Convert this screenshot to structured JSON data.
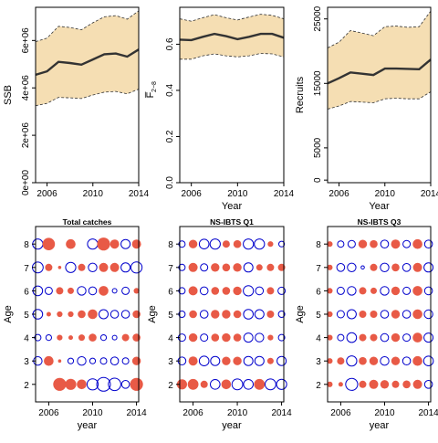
{
  "chart_data": [
    {
      "type": "line",
      "panel": "ssb",
      "xlabel": "",
      "ylabel": "SSB",
      "xlim": [
        2005,
        2014
      ],
      "ylim": [
        0,
        7400000
      ],
      "xticks": [
        2006,
        2010,
        2014
      ],
      "xtick_labels": [
        "2006",
        "2010",
        "2014"
      ],
      "yticks": [
        0,
        2000000,
        4000000,
        6000000
      ],
      "ytick_labels": [
        "0e+00",
        "2e+06",
        "4e+06",
        "6e+06"
      ],
      "x": [
        2005,
        2006,
        2007,
        2008,
        2009,
        2010,
        2011,
        2012,
        2013,
        2014
      ],
      "estimate": [
        4550000,
        4700000,
        5100000,
        5050000,
        4980000,
        5200000,
        5420000,
        5450000,
        5320000,
        5620000
      ],
      "upper": [
        5950000,
        6100000,
        6600000,
        6550000,
        6450000,
        6750000,
        7000000,
        7050000,
        6900000,
        7250000
      ],
      "lower": [
        3250000,
        3350000,
        3600000,
        3580000,
        3550000,
        3700000,
        3820000,
        3850000,
        3750000,
        3950000
      ],
      "band_color": "#f5deb3",
      "line_color": "#333333"
    },
    {
      "type": "line",
      "panel": "fbar",
      "xlabel": "Year",
      "ylabel": "F̅ 2–8",
      "ylabel_main": "F̅",
      "ylabel_sub": "2−8",
      "xlim": [
        2005,
        2014
      ],
      "ylim": [
        0,
        0.76
      ],
      "xticks": [
        2006,
        2010,
        2014
      ],
      "xtick_labels": [
        "2006",
        "2010",
        "2014"
      ],
      "yticks": [
        0,
        0.2,
        0.4,
        0.6
      ],
      "ytick_labels": [
        "0.0",
        "0.2",
        "0.4",
        "0.6"
      ],
      "x": [
        2005,
        2006,
        2007,
        2008,
        2009,
        2010,
        2011,
        2012,
        2013,
        2014
      ],
      "estimate": [
        0.62,
        0.618,
        0.632,
        0.645,
        0.635,
        0.622,
        0.632,
        0.645,
        0.645,
        0.628
      ],
      "upper": [
        0.71,
        0.7,
        0.715,
        0.728,
        0.715,
        0.705,
        0.718,
        0.73,
        0.725,
        0.71
      ],
      "lower": [
        0.535,
        0.535,
        0.55,
        0.558,
        0.55,
        0.545,
        0.55,
        0.56,
        0.558,
        0.545
      ],
      "band_color": "#f5deb3",
      "line_color": "#333333"
    },
    {
      "type": "line",
      "panel": "recruits",
      "xlabel": "Year",
      "ylabel": "Recruits",
      "xlim": [
        2005,
        2014
      ],
      "ylim": [
        -400,
        26800
      ],
      "xticks": [
        2006,
        2010,
        2014
      ],
      "xtick_labels": [
        "2006",
        "2010",
        "2014"
      ],
      "yticks": [
        0,
        5000,
        15000,
        25000
      ],
      "ytick_labels": [
        "0",
        "5000",
        "15000",
        "25000"
      ],
      "x": [
        2005,
        2006,
        2007,
        2008,
        2009,
        2010,
        2011,
        2012,
        2013,
        2014
      ],
      "estimate": [
        15000,
        15800,
        16700,
        16500,
        16300,
        17300,
        17300,
        17250,
        17200,
        18700
      ],
      "upper": [
        20500,
        21400,
        23200,
        22800,
        22400,
        23800,
        23900,
        23700,
        23800,
        26200
      ],
      "lower": [
        11000,
        11500,
        12200,
        12100,
        12000,
        12600,
        12700,
        12600,
        12600,
        13700
      ],
      "band_color": "#f5deb3",
      "line_color": "#333333"
    },
    {
      "type": "scatter",
      "panel": "total-catches",
      "title": "Total catches",
      "xlabel": "year",
      "ylabel": "Age",
      "xlim": [
        2004.8,
        2014.2
      ],
      "ylim": [
        1.25,
        8.75
      ],
      "xticks": [
        2006,
        2010,
        2014
      ],
      "xtick_labels": [
        "2006",
        "2010",
        "2014"
      ],
      "yticks": [
        2,
        3,
        4,
        5,
        6,
        7,
        8
      ],
      "years": [
        2005,
        2006,
        2007,
        2008,
        2009,
        2010,
        2011,
        2012,
        2013,
        2014
      ],
      "ages": [
        2,
        3,
        4,
        5,
        6,
        7,
        8
      ],
      "positive_color": "#e85a46",
      "negative_color": "#0000cc",
      "residuals": [
        [
          0,
          0,
          1.6,
          1.2,
          0.9,
          -1.2,
          -1.8,
          -1.5,
          -0.6,
          1.6
        ],
        [
          -0.7,
          0.9,
          0.1,
          -0.3,
          -0.7,
          -0.3,
          -0.4,
          -0.6,
          -0.4,
          0.7
        ],
        [
          -0.4,
          -0.3,
          0.3,
          0.2,
          0.4,
          0.6,
          -0.3,
          -0.2,
          0.5,
          0.6
        ],
        [
          -0.9,
          0.2,
          0.3,
          0.3,
          0.6,
          0.9,
          -0.8,
          -0.6,
          -0.6,
          0.6
        ],
        [
          -0.9,
          -0.5,
          0.5,
          0.4,
          -0.7,
          -0.6,
          0.9,
          -0.2,
          -0.5,
          0.3
        ],
        [
          -1.1,
          0.5,
          0.1,
          -1.0,
          0.5,
          -0.7,
          0.8,
          0.8,
          -0.8,
          -1.2
        ],
        [
          -1.0,
          1.5,
          0,
          0.9,
          0,
          -1.0,
          1.6,
          0.8,
          -0.8,
          0.8
        ]
      ]
    },
    {
      "type": "scatter",
      "panel": "ns-ibts-q1",
      "title": "NS-IBTS Q1",
      "xlabel": "year",
      "ylabel": "Age",
      "xlim": [
        2004.8,
        2014.2
      ],
      "ylim": [
        1.25,
        8.75
      ],
      "xticks": [
        2006,
        2010,
        2014
      ],
      "xtick_labels": [
        "2006",
        "2010",
        "2014"
      ],
      "yticks": [
        2,
        3,
        4,
        5,
        6,
        7,
        8
      ],
      "years": [
        2005,
        2006,
        2007,
        2008,
        2009,
        2010,
        2011,
        2012,
        2013,
        2014
      ],
      "ages": [
        2,
        3,
        4,
        5,
        6,
        7,
        8
      ],
      "positive_color": "#e85a46",
      "negative_color": "#0000cc",
      "residuals": [
        [
          1.0,
          1.1,
          0.5,
          -0.9,
          0.9,
          -1.1,
          -0.9,
          1.1,
          -1.1,
          -1.0
        ],
        [
          -0.6,
          0.8,
          -0.9,
          -0.8,
          0.7,
          0.7,
          -0.8,
          -0.8,
          0.4,
          -0.8
        ],
        [
          -0.5,
          0.7,
          -0.5,
          0.6,
          0.7,
          0.6,
          -0.8,
          -0.7,
          0.3,
          -0.4
        ],
        [
          -0.4,
          0.6,
          -0.6,
          0.7,
          0.7,
          0.6,
          -0.9,
          -0.8,
          0.5,
          -0.4
        ],
        [
          -0.4,
          0.8,
          -0.6,
          0.6,
          0.6,
          0.7,
          -1.0,
          -0.6,
          0.5,
          -0.5
        ],
        [
          -0.4,
          0.8,
          -0.5,
          0.7,
          0.6,
          0.7,
          -0.8,
          0.4,
          0.5,
          0.5
        ],
        [
          -0.4,
          0.7,
          -0.9,
          -1.0,
          0.5,
          0.6,
          -1.0,
          -1.0,
          0.3,
          -0.3
        ]
      ]
    },
    {
      "type": "scatter",
      "panel": "ns-ibts-q3",
      "title": "NS-IBTS Q3",
      "xlabel": "year",
      "ylabel": "Age",
      "xlim": [
        2004.8,
        2014.2
      ],
      "ylim": [
        1.25,
        8.75
      ],
      "xticks": [
        2006,
        2010,
        2014
      ],
      "xtick_labels": [
        "2006",
        "2010",
        "2014"
      ],
      "yticks": [
        2,
        3,
        4,
        5,
        6,
        7,
        8
      ],
      "years": [
        2005,
        2006,
        2007,
        2008,
        2009,
        2010,
        2011,
        2012,
        2013,
        2014
      ],
      "ages": [
        2,
        3,
        4,
        5,
        6,
        7,
        8
      ],
      "positive_color": "#e85a46",
      "negative_color": "#0000cc",
      "residuals": [
        [
          0.3,
          0.2,
          -1.4,
          0.5,
          0.8,
          0.7,
          0.5,
          0.6,
          0.8,
          -0.6
        ],
        [
          0.3,
          0.5,
          -1.0,
          0.6,
          0.7,
          -0.7,
          0.7,
          -0.6,
          0.9,
          -0.9
        ],
        [
          0.3,
          -0.4,
          -0.9,
          0.5,
          0.5,
          -0.6,
          0.7,
          -0.5,
          0.9,
          -0.8
        ],
        [
          0.3,
          -0.5,
          -0.8,
          0.5,
          0.5,
          -0.6,
          0.7,
          -0.6,
          0.9,
          -0.7
        ],
        [
          0.3,
          -0.5,
          -0.7,
          0.5,
          0.4,
          -0.7,
          0.7,
          -0.5,
          0.9,
          -0.6
        ],
        [
          0.3,
          -0.6,
          -0.7,
          -0.1,
          0.5,
          -0.7,
          0.6,
          -0.6,
          0.8,
          -0.8
        ],
        [
          0.3,
          -0.4,
          -0.5,
          0.7,
          0.6,
          -0.6,
          0.8,
          -0.5,
          0.9,
          -0.6
        ]
      ]
    }
  ]
}
